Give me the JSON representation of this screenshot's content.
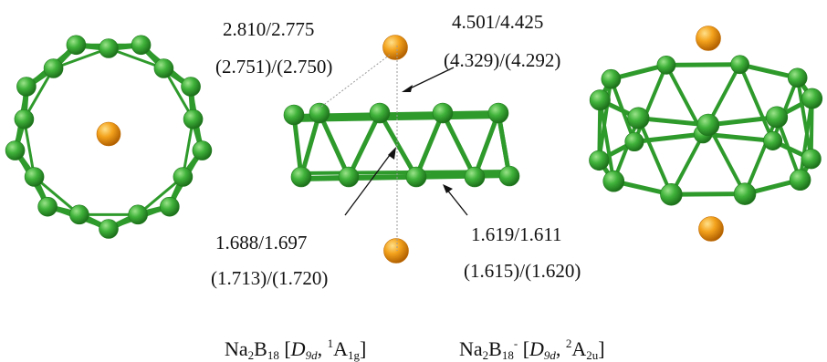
{
  "labels": {
    "na_b_upper": "2.810/2.775",
    "na_b_lower": "(2.751)/(2.750)",
    "na_na_upper": "4.501/4.425",
    "na_na_lower": "(4.329)/(4.292)",
    "b_b_inter_upper": "1.688/1.697",
    "b_b_inter_lower": "(1.713)/(1.720)",
    "b_b_intra_upper": "1.619/1.611",
    "b_b_intra_lower": "(1.615)/(1.620)"
  },
  "captions": {
    "left": {
      "base": "Na",
      "sub1": "2",
      "mid": "B",
      "sub2": "18",
      "open": " [",
      "pg": "D",
      "pg_sub": "9d",
      "comma": ", ",
      "mult": "1",
      "state": "A",
      "state_sub": "1g",
      "close": "]"
    },
    "right": {
      "base": "Na",
      "sub1": "2",
      "mid": "B",
      "sub2": "18",
      "charge": "-",
      "open": " [",
      "pg": "D",
      "pg_sub": "9d",
      "comma": ", ",
      "mult": "2",
      "state": "A",
      "state_sub": "2u",
      "close": "]"
    }
  },
  "colors": {
    "boron": "#3fb23a",
    "boron_dark": "#1f7a1c",
    "bond": "#2f9a2c",
    "sodium": "#f3a21c",
    "sodium_dark": "#c06a00"
  }
}
